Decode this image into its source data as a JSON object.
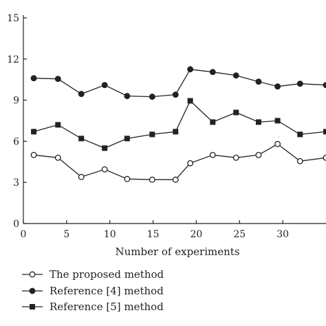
{
  "chart_data": {
    "type": "line",
    "title": "",
    "xlabel": "Number of experiments",
    "ylabel": "",
    "xlim": [
      0,
      35
    ],
    "ylim": [
      0,
      15
    ],
    "xticks": [
      0,
      5,
      10,
      15,
      20,
      25,
      30
    ],
    "yticks": [
      0,
      3,
      6,
      9,
      12,
      15
    ],
    "legend_position": "bottom-left",
    "series": [
      {
        "name": "The proposed method",
        "marker": "open-circle",
        "color": "#222222",
        "x": [
          1.2,
          4,
          6.7,
          9.4,
          12,
          14.9,
          17.6,
          19.3,
          21.9,
          24.6,
          27.2,
          29.4,
          32,
          35
        ],
        "y": [
          5.0,
          4.8,
          3.4,
          3.95,
          3.25,
          3.2,
          3.2,
          4.4,
          5.0,
          4.8,
          5.0,
          5.8,
          4.55,
          4.8
        ]
      },
      {
        "name": "Reference [4] method",
        "marker": "filled-circle",
        "color": "#222222",
        "x": [
          1.2,
          4,
          6.7,
          9.4,
          12,
          14.9,
          17.6,
          19.3,
          21.9,
          24.6,
          27.2,
          29.4,
          32,
          35
        ],
        "y": [
          10.6,
          10.55,
          9.45,
          10.1,
          9.3,
          9.25,
          9.4,
          11.25,
          11.05,
          10.8,
          10.35,
          10.0,
          10.2,
          10.1
        ]
      },
      {
        "name": "Reference [5] method",
        "marker": "filled-square",
        "color": "#222222",
        "x": [
          1.2,
          4,
          6.7,
          9.4,
          12,
          14.9,
          17.6,
          19.3,
          21.9,
          24.6,
          27.2,
          29.4,
          32,
          35
        ],
        "y": [
          6.7,
          7.2,
          6.2,
          5.5,
          6.2,
          6.5,
          6.7,
          8.95,
          7.4,
          8.1,
          7.4,
          7.5,
          6.5,
          6.7
        ]
      }
    ]
  }
}
